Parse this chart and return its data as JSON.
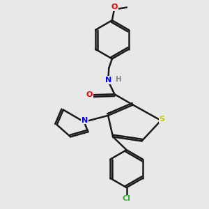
{
  "background_color": "#e8e8e8",
  "bond_color": "#1a1a1a",
  "bond_width": 1.8,
  "S_color": "#cccc00",
  "N_color": "#0000ee",
  "O_color": "#ee0000",
  "Cl_color": "#33aa33",
  "H_color": "#888888",
  "figsize": [
    3.0,
    3.0
  ],
  "dpi": 100,
  "xlim": [
    0,
    10
  ],
  "ylim": [
    0,
    10
  ],
  "font_size": 7.5
}
